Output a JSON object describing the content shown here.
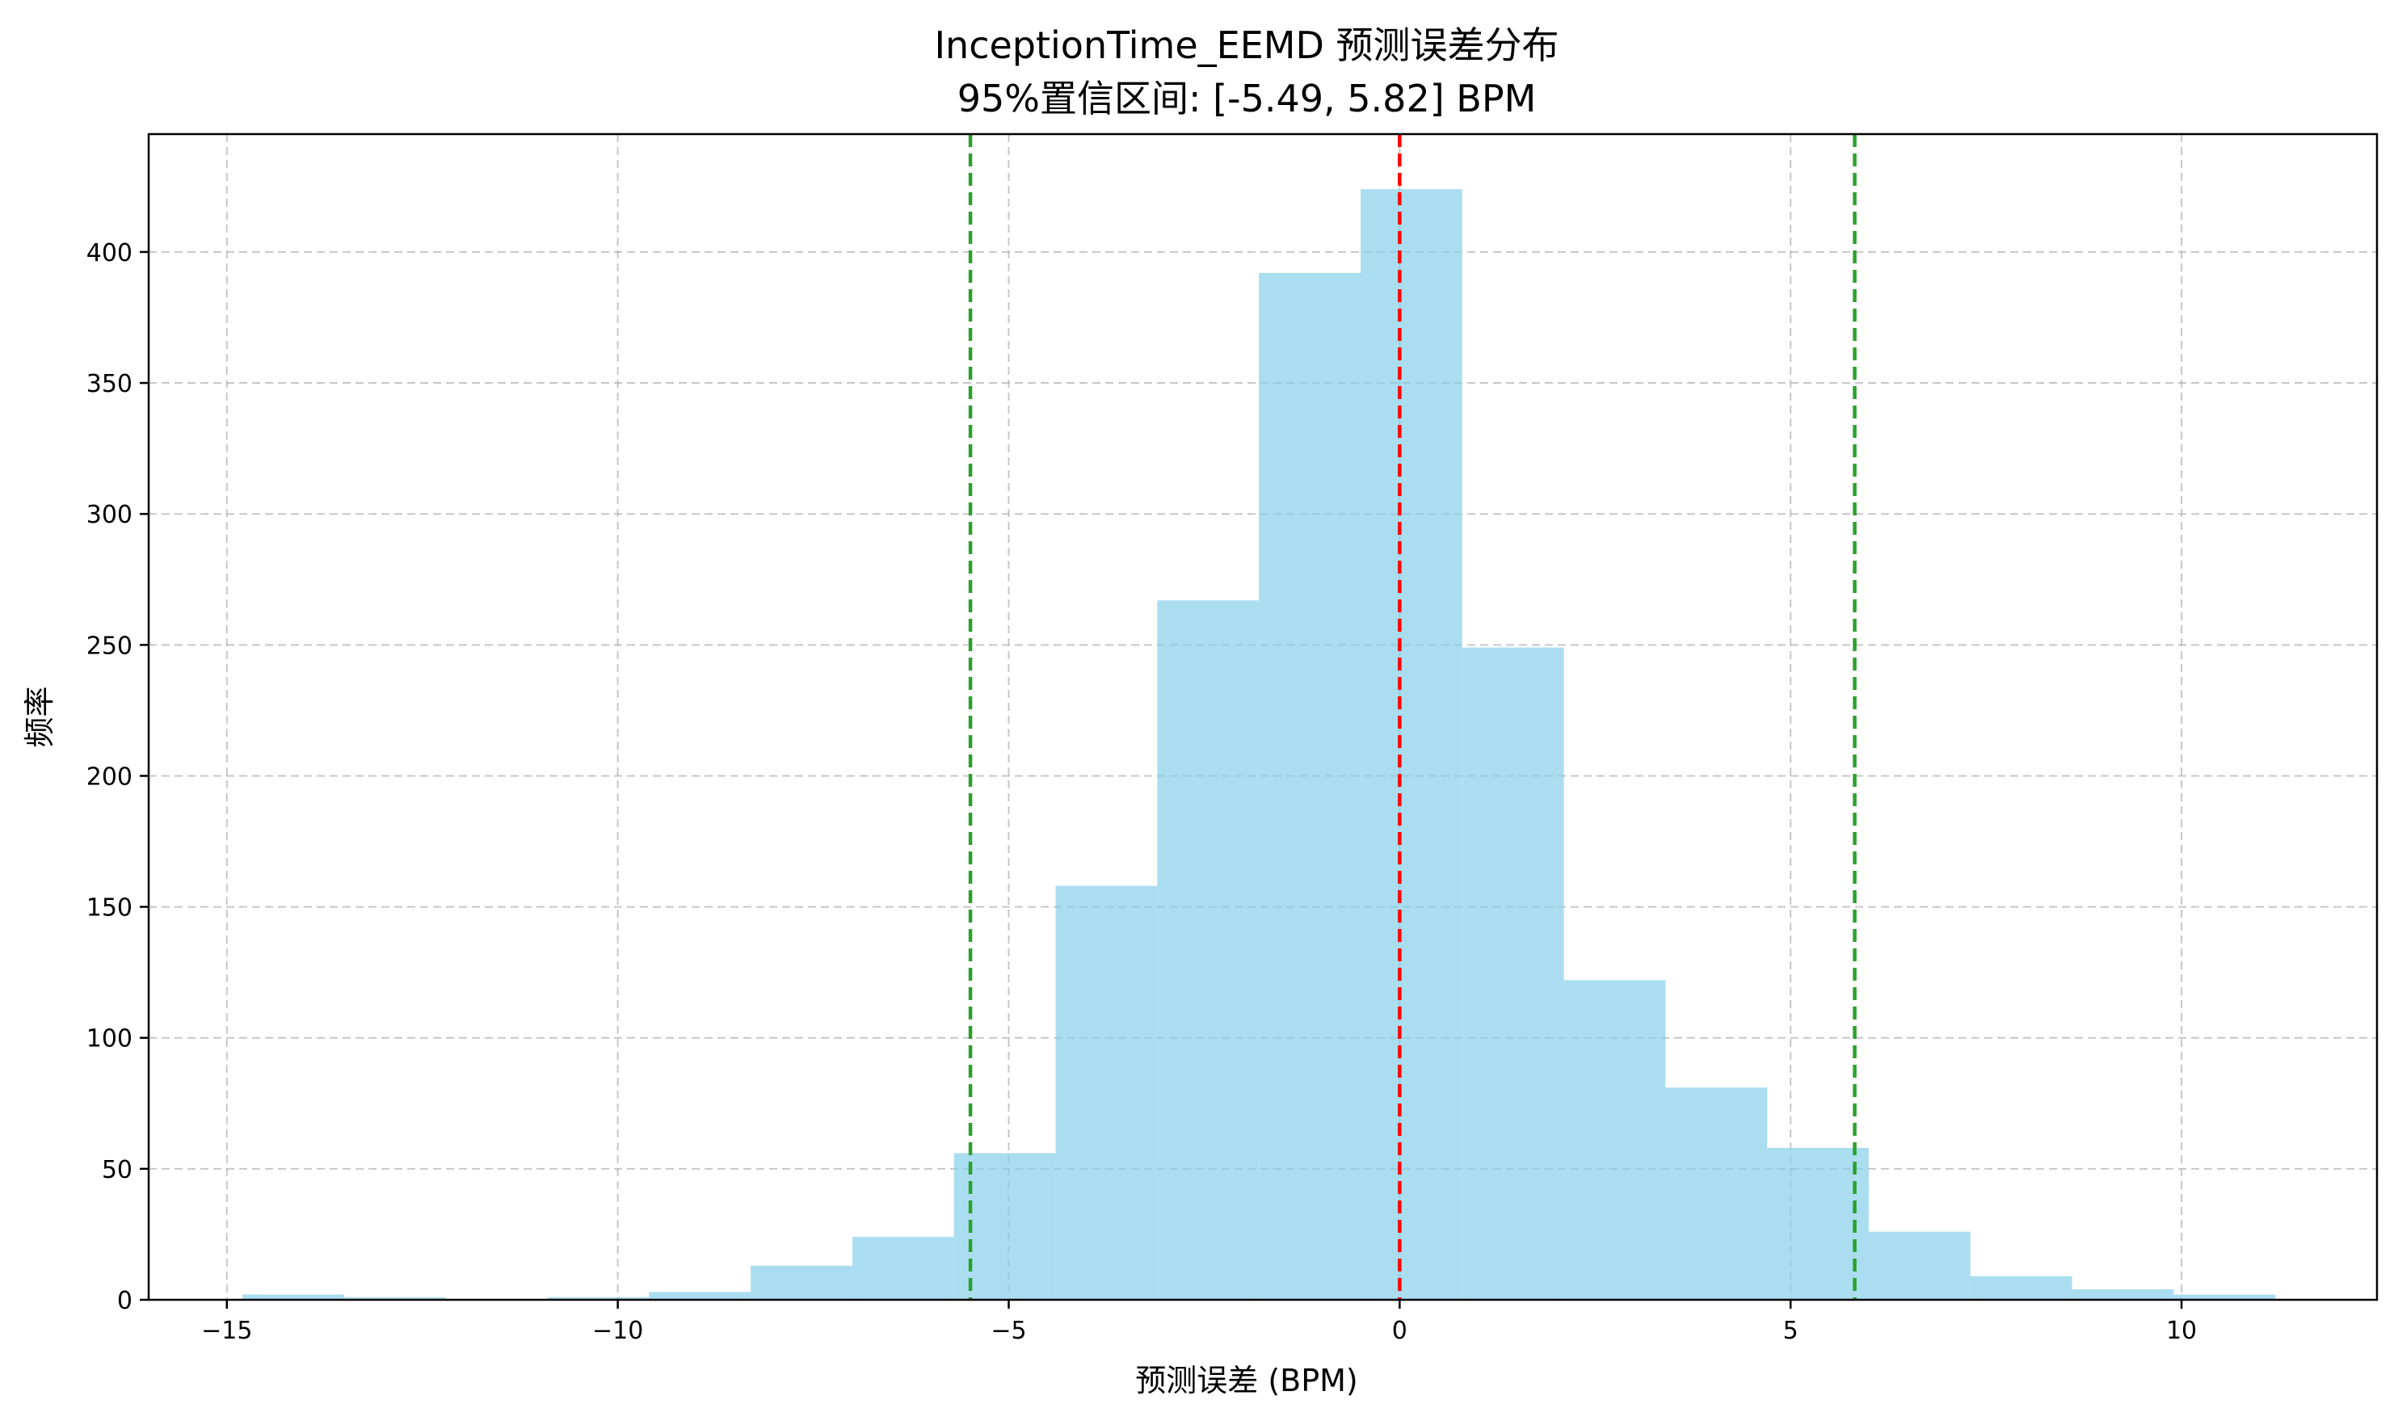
{
  "chart_data": {
    "type": "histogram",
    "title": "InceptionTime_EEMD 预测误差分布",
    "subtitle": "95%置信区间: [-5.49, 5.82] BPM",
    "xlabel": "预测误差 (BPM)",
    "ylabel": "频率",
    "xlim": [
      -16,
      12.5
    ],
    "ylim": [
      0,
      445
    ],
    "xticks": [
      -15,
      -10,
      -5,
      0,
      5,
      10
    ],
    "yticks": [
      0,
      50,
      100,
      150,
      200,
      250,
      300,
      350,
      400
    ],
    "xtick_labels": [
      "−15",
      "−10",
      "−5",
      "0",
      "5",
      "10"
    ],
    "ytick_labels": [
      "0",
      "50",
      "100",
      "150",
      "200",
      "250",
      "300",
      "350",
      "400"
    ],
    "grid": true,
    "bar_color": "#87CEEB",
    "bins": [
      {
        "x0": -14.8,
        "x1": -13.5,
        "count": 2
      },
      {
        "x0": -13.5,
        "x1": -12.2,
        "count": 1
      },
      {
        "x0": -12.2,
        "x1": -10.9,
        "count": 0
      },
      {
        "x0": -10.9,
        "x1": -9.6,
        "count": 1
      },
      {
        "x0": -9.6,
        "x1": -8.3,
        "count": 3
      },
      {
        "x0": -8.3,
        "x1": -7.0,
        "count": 13
      },
      {
        "x0": -7.0,
        "x1": -5.7,
        "count": 24
      },
      {
        "x0": -5.7,
        "x1": -4.4,
        "count": 56
      },
      {
        "x0": -4.4,
        "x1": -3.1,
        "count": 158
      },
      {
        "x0": -3.1,
        "x1": -1.8,
        "count": 267
      },
      {
        "x0": -1.8,
        "x1": -0.5,
        "count": 392
      },
      {
        "x0": -0.5,
        "x1": 0.8,
        "count": 424
      },
      {
        "x0": 0.8,
        "x1": 2.1,
        "count": 249
      },
      {
        "x0": 2.1,
        "x1": 3.4,
        "count": 122
      },
      {
        "x0": 3.4,
        "x1": 4.7,
        "count": 81
      },
      {
        "x0": 4.7,
        "x1": 6.0,
        "count": 58
      },
      {
        "x0": 6.0,
        "x1": 7.3,
        "count": 26
      },
      {
        "x0": 7.3,
        "x1": 8.6,
        "count": 9
      },
      {
        "x0": 8.6,
        "x1": 9.9,
        "count": 4
      },
      {
        "x0": 9.9,
        "x1": 11.2,
        "count": 2
      }
    ],
    "vlines": [
      {
        "x": 0,
        "color": "#ff0000",
        "style": "dashed"
      },
      {
        "x": -5.49,
        "color": "#2ca02c",
        "style": "dashed"
      },
      {
        "x": 5.82,
        "color": "#2ca02c",
        "style": "dashed"
      }
    ]
  }
}
